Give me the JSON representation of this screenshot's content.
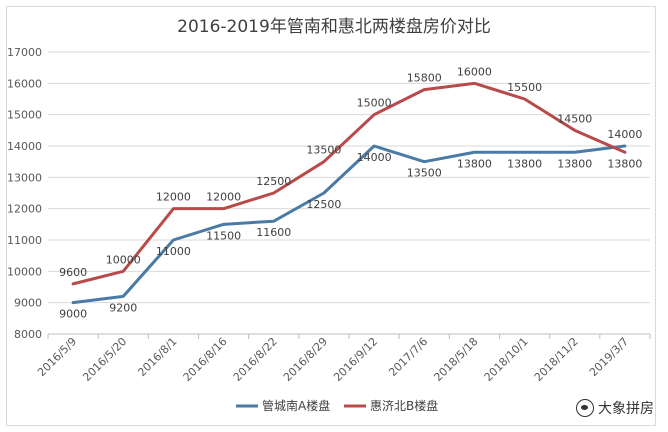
{
  "chart_data": {
    "type": "line",
    "title": "2016-2019年管南和惠北两楼盘房价对比",
    "categories": [
      "2016/5/9",
      "2016/5/20",
      "2016/8/1",
      "2016/8/16",
      "2016/8/22",
      "2016/8/29",
      "2016/9/12",
      "2017/7/6",
      "2018/5/18",
      "2018/10/1",
      "2018/11/2",
      "2019/3/7"
    ],
    "ylim": [
      8000,
      17000
    ],
    "yticks": [
      8000,
      9000,
      10000,
      11000,
      12000,
      13000,
      14000,
      15000,
      16000,
      17000
    ],
    "grid": true,
    "legend_position": "bottom",
    "series": [
      {
        "name": "管城南A楼盘",
        "color": "#4a7aa6",
        "values": [
          9000,
          9200,
          11000,
          11500,
          11600,
          12500,
          14000,
          13500,
          13800,
          13800,
          13800,
          14000
        ]
      },
      {
        "name": "惠济北B楼盘",
        "color": "#b94a4a",
        "values": [
          9600,
          10000,
          12000,
          12000,
          12500,
          13500,
          15000,
          15800,
          16000,
          15500,
          14500,
          13800
        ]
      }
    ]
  },
  "watermark": {
    "text": "大象拼房"
  }
}
